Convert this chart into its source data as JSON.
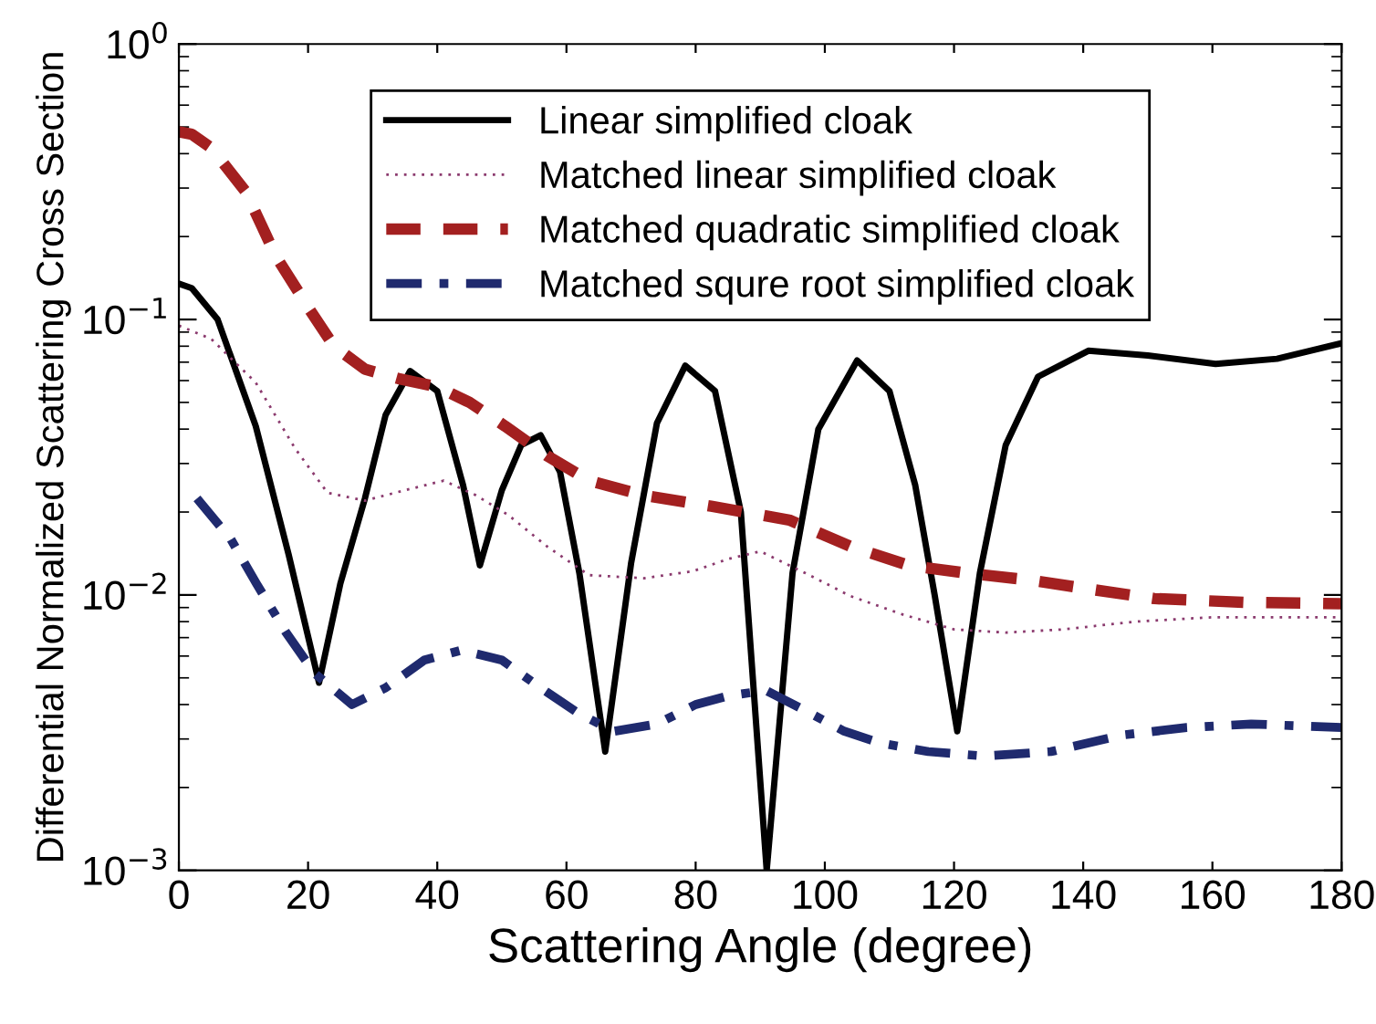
{
  "chart_data": {
    "type": "line",
    "xlabel": "Scattering Angle (degree)",
    "ylabel": "Differential Normalized Scattering Cross Section",
    "xlim": [
      0,
      180
    ],
    "xticks": [
      0,
      20,
      40,
      60,
      80,
      100,
      120,
      140,
      160,
      180
    ],
    "ylim": [
      0.001,
      1
    ],
    "yticks": [
      {
        "value": 0.001,
        "label": "10$^{−3}$"
      },
      {
        "value": 0.01,
        "label": "10$^{−2}$"
      },
      {
        "value": 0.1,
        "label": "10$^{−1}$"
      },
      {
        "value": 1,
        "label": "10$^{0}$"
      }
    ],
    "log": "y",
    "grid": false,
    "legend": "top",
    "marker": "none",
    "series": [
      {
        "name": "Linear simplified cloak",
        "color": "#000000",
        "line_style": "solid",
        "x": [
          0,
          2,
          6,
          11.9,
          17,
          21.7,
          25,
          28.8,
          32,
          35.8,
          40,
          44,
          46.6,
          50,
          53,
          56,
          59,
          62,
          66,
          70,
          74,
          78.4,
          83,
          87,
          91,
          95,
          99,
          105,
          110,
          114,
          117,
          120.5,
          124,
          128,
          133,
          140.8,
          150,
          160.5,
          170,
          180
        ],
        "values": [
          0.135,
          0.13,
          0.1,
          0.041,
          0.014,
          0.0048,
          0.011,
          0.0224,
          0.045,
          0.065,
          0.055,
          0.025,
          0.0128,
          0.024,
          0.035,
          0.038,
          0.028,
          0.012,
          0.0027,
          0.013,
          0.042,
          0.068,
          0.055,
          0.02,
          0.001,
          0.012,
          0.04,
          0.071,
          0.055,
          0.025,
          0.01,
          0.0032,
          0.012,
          0.035,
          0.062,
          0.077,
          0.074,
          0.069,
          0.072,
          0.082
        ]
      },
      {
        "name": "Matched linear simplified cloak",
        "color": "#8b3a6e",
        "line_style": "dotted",
        "x": [
          0,
          5,
          11.9,
          18,
          23,
          28.8,
          35,
          41,
          46,
          51,
          57,
          63.5,
          72,
          79.6,
          85,
          90,
          97,
          104,
          112,
          120,
          128,
          137,
          148,
          160,
          170,
          180
        ],
        "values": [
          0.095,
          0.085,
          0.059,
          0.034,
          0.0235,
          0.022,
          0.024,
          0.026,
          0.023,
          0.0195,
          0.015,
          0.0118,
          0.0115,
          0.0122,
          0.0135,
          0.0144,
          0.012,
          0.0099,
          0.0085,
          0.0075,
          0.0073,
          0.0075,
          0.008,
          0.0083,
          0.0083,
          0.0083
        ]
      },
      {
        "name": "Matched quadratic simplified cloak",
        "color": "#a32020",
        "line_style": "dashed",
        "x": [
          0,
          2,
          5,
          10.4,
          15,
          20.3,
          24,
          28.8,
          34,
          40,
          45,
          50.5,
          57,
          63.5,
          72,
          82.4,
          94.5,
          104,
          113,
          122,
          132,
          141,
          151,
          165,
          180
        ],
        "values": [
          0.48,
          0.47,
          0.42,
          0.29,
          0.17,
          0.108,
          0.08,
          0.066,
          0.061,
          0.057,
          0.05,
          0.041,
          0.032,
          0.026,
          0.023,
          0.021,
          0.0187,
          0.015,
          0.0128,
          0.012,
          0.0113,
          0.0105,
          0.0097,
          0.0094,
          0.0093
        ]
      },
      {
        "name": "Matched squre root simplified cloak",
        "color": "#1f2a6e",
        "line_style": "dashdot",
        "x": [
          2.8,
          8,
          12,
          16.6,
          21,
          26.8,
          32,
          38,
          43.7,
          50,
          56,
          62,
          67.4,
          74,
          80,
          85,
          90.9,
          97,
          103,
          108.6,
          116,
          124.7,
          135,
          146,
          156,
          166,
          180
        ],
        "values": [
          0.0224,
          0.016,
          0.011,
          0.0073,
          0.0052,
          0.004,
          0.0046,
          0.0058,
          0.0063,
          0.0058,
          0.0046,
          0.0037,
          0.0032,
          0.0034,
          0.004,
          0.0043,
          0.0045,
          0.0038,
          0.0032,
          0.0029,
          0.0027,
          0.0026,
          0.0027,
          0.0031,
          0.0033,
          0.0034,
          0.0033
        ]
      }
    ]
  }
}
